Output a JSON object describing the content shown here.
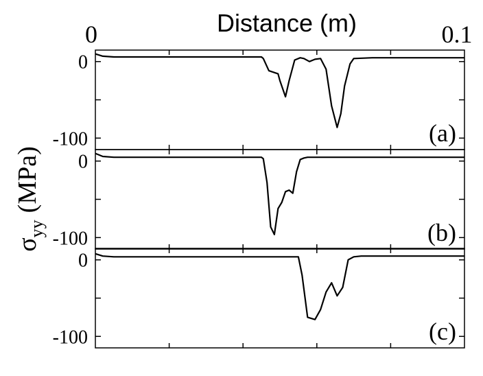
{
  "chart_data": {
    "type": "line",
    "xlabel": "Distance (m)",
    "x_tick_labels": [
      "0",
      "0.1"
    ],
    "ylabel_main": "σ",
    "ylabel_sub": "yy",
    "ylabel_unit": "(MPa)",
    "xlim": [
      0,
      0.1
    ],
    "ylim": [
      -115,
      15
    ],
    "y_tick_labels": [
      "0",
      "-100"
    ],
    "grid": false,
    "panels": [
      {
        "label": "(a)",
        "x": [
          0,
          0.002,
          0.005,
          0.01,
          0.02,
          0.03,
          0.04,
          0.045,
          0.0455,
          0.047,
          0.0495,
          0.05,
          0.0515,
          0.0525,
          0.054,
          0.0555,
          0.0565,
          0.058,
          0.059,
          0.0595,
          0.061,
          0.0625,
          0.064,
          0.0655,
          0.0665,
          0.0675,
          0.069,
          0.07,
          0.075,
          0.08,
          0.09,
          0.1
        ],
        "y": [
          10,
          7,
          6,
          6,
          6,
          6,
          6,
          6,
          4,
          -12,
          -16,
          -25,
          -46,
          -25,
          2,
          5,
          4,
          0,
          2,
          3,
          4,
          -10,
          -58,
          -86,
          -68,
          -32,
          -3,
          4,
          5,
          5,
          5,
          5
        ]
      },
      {
        "label": "(b)",
        "x": [
          0,
          0.002,
          0.005,
          0.01,
          0.02,
          0.03,
          0.04,
          0.045,
          0.0455,
          0.0465,
          0.0475,
          0.0485,
          0.0495,
          0.0505,
          0.0515,
          0.0525,
          0.0535,
          0.0545,
          0.0555,
          0.0565,
          0.0575,
          0.0585,
          0.06,
          0.07,
          0.08,
          0.09,
          0.1
        ],
        "y": [
          10,
          6,
          5,
          5,
          5,
          5,
          5,
          5,
          3,
          -28,
          -86,
          -96,
          -62,
          -54,
          -40,
          -38,
          -42,
          -14,
          2,
          4,
          5,
          5,
          5,
          5,
          5,
          5,
          5
        ]
      },
      {
        "label": "(c)",
        "x": [
          0,
          0.002,
          0.005,
          0.01,
          0.02,
          0.03,
          0.04,
          0.05,
          0.055,
          0.056,
          0.0575,
          0.0595,
          0.061,
          0.0625,
          0.064,
          0.0655,
          0.067,
          0.0685,
          0.07,
          0.072,
          0.08,
          0.09,
          0.1
        ],
        "y": [
          8,
          5,
          4,
          4,
          4,
          4,
          4,
          4,
          4,
          -20,
          -75,
          -78,
          -65,
          -42,
          -30,
          -47,
          -36,
          0,
          4,
          5,
          5,
          5,
          5
        ]
      }
    ]
  }
}
